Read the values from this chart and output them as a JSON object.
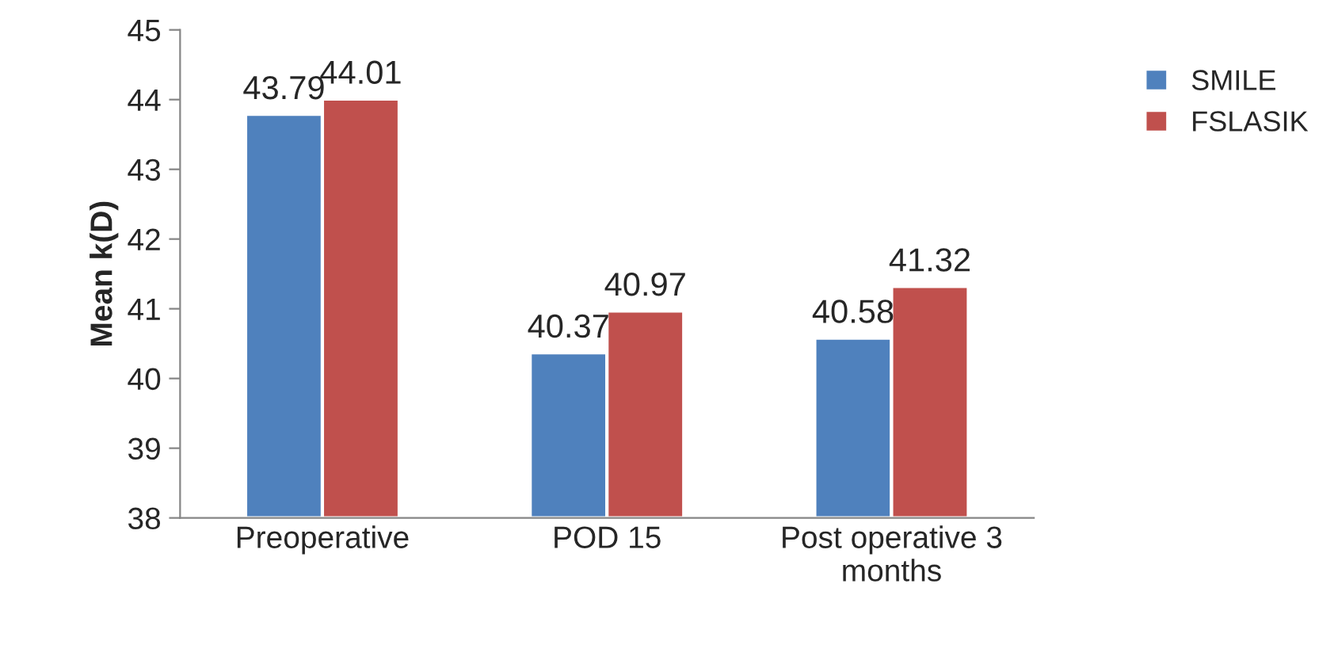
{
  "chart_data": {
    "type": "bar",
    "ylabel": "Mean k(D)",
    "categories": [
      "Preoperative",
      "POD 15",
      "Post operative 3\nmonths"
    ],
    "series": [
      {
        "name": "SMILE",
        "color": "#4f81bd",
        "values": [
          43.79,
          40.37,
          40.58
        ]
      },
      {
        "name": "FSLASIK",
        "color": "#c0504d",
        "values": [
          44.01,
          40.97,
          41.32
        ]
      }
    ],
    "ylim": [
      38,
      45
    ],
    "yticks": [
      38,
      39,
      40,
      41,
      42,
      43,
      44,
      45
    ],
    "data_labels": true,
    "legend": "right",
    "grid": false
  }
}
